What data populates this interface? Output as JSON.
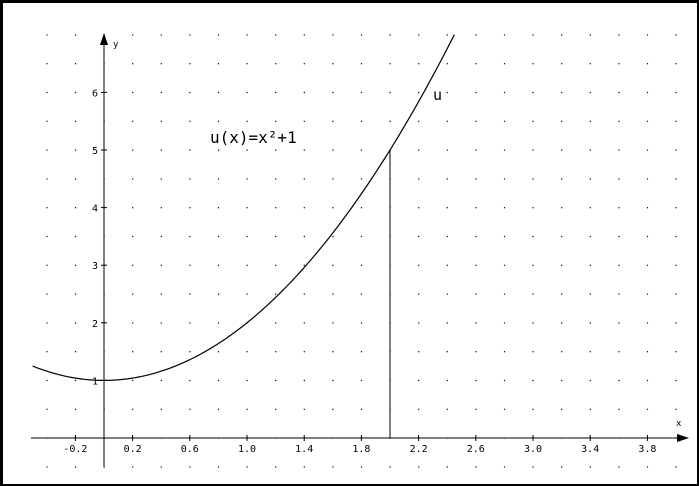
{
  "chart_data": {
    "type": "line",
    "title": "",
    "xlabel": "x",
    "ylabel": "y",
    "xlim": [
      -0.5,
      4.0
    ],
    "ylim": [
      -0.6,
      7.2
    ],
    "grid": "dotted",
    "x_tick_labels": [
      {
        "value": -0.2,
        "label": "-0.2"
      },
      {
        "value": 0.2,
        "label": "0.2"
      },
      {
        "value": 0.6,
        "label": "0.6"
      },
      {
        "value": 1.0,
        "label": "1.0"
      },
      {
        "value": 1.4,
        "label": "1.4"
      },
      {
        "value": 1.8,
        "label": "1.8"
      },
      {
        "value": 2.2,
        "label": "2.2"
      },
      {
        "value": 2.6,
        "label": "2.6"
      },
      {
        "value": 3.0,
        "label": "3.0"
      },
      {
        "value": 3.4,
        "label": "3.4"
      },
      {
        "value": 3.8,
        "label": "3.8"
      }
    ],
    "y_tick_labels": [
      {
        "value": 1,
        "label": "1"
      },
      {
        "value": 2,
        "label": "2"
      },
      {
        "value": 3,
        "label": "3"
      },
      {
        "value": 4,
        "label": "4"
      },
      {
        "value": 5,
        "label": "5"
      },
      {
        "value": 6,
        "label": "6"
      }
    ],
    "series": [
      {
        "name": "u",
        "expression": "x^2+1",
        "x_range": [
          -0.5,
          2.45
        ],
        "points": [
          [
            -0.5,
            1.25
          ],
          [
            -0.25,
            1.0625
          ],
          [
            0.0,
            1.0
          ],
          [
            0.25,
            1.0625
          ],
          [
            0.5,
            1.25
          ],
          [
            0.75,
            1.5625
          ],
          [
            1.0,
            2.0
          ],
          [
            1.25,
            2.5625
          ],
          [
            1.5,
            3.25
          ],
          [
            1.75,
            4.0625
          ],
          [
            2.0,
            5.0
          ],
          [
            2.25,
            6.0625
          ],
          [
            2.45,
            7.0025
          ]
        ]
      }
    ],
    "annotations": {
      "formula": "u(x)=x²+1",
      "curve_label": "u",
      "vertical_line_x": 2.0,
      "vertical_line_y": 5.0
    }
  }
}
